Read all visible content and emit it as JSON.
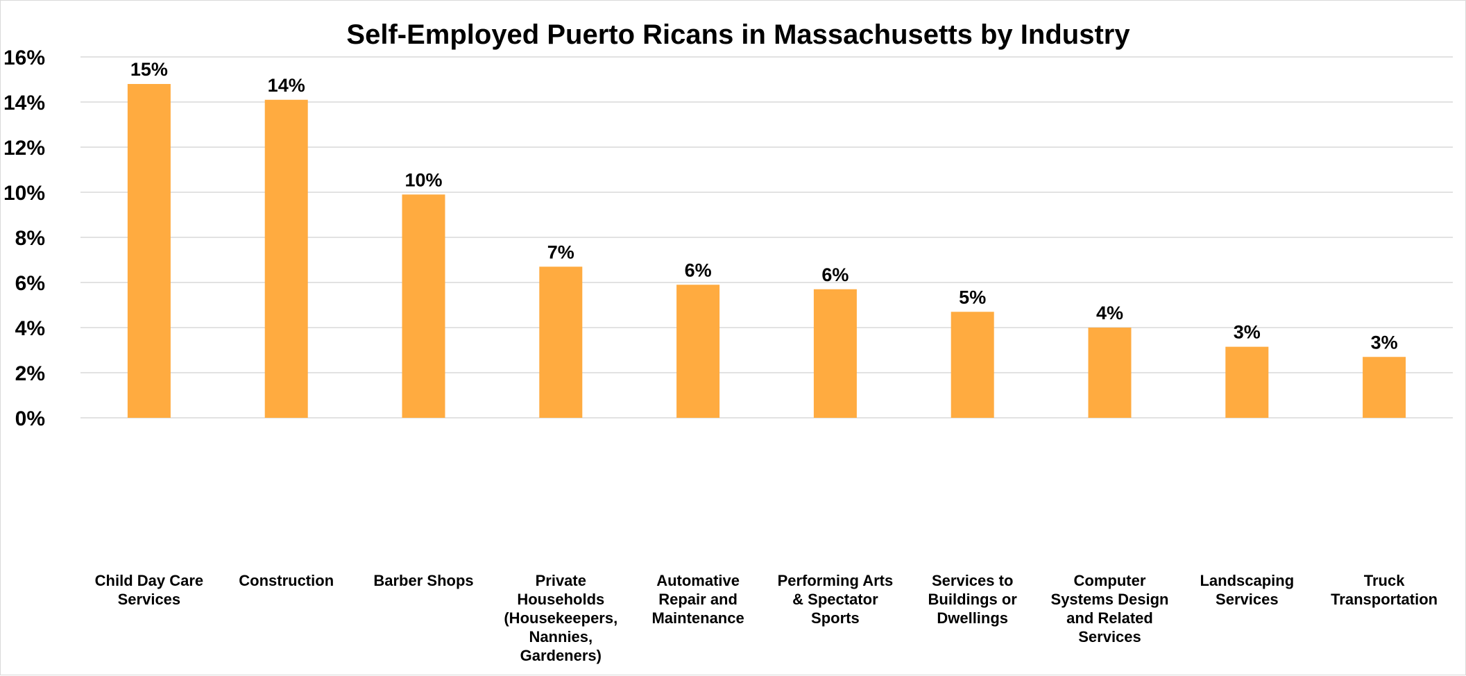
{
  "chart_data": {
    "type": "bar",
    "title": "Self-Employed Puerto Ricans in Massachusetts by Industry",
    "xlabel": "",
    "ylabel": "",
    "ylim": [
      0,
      16
    ],
    "y_ticks": [
      "0%",
      "2%",
      "4%",
      "6%",
      "8%",
      "10%",
      "12%",
      "14%",
      "16%"
    ],
    "grid": true,
    "legend": "none",
    "bar_color": "#FFAB40",
    "categories": [
      [
        "Child Day Care",
        "Services"
      ],
      [
        "Construction"
      ],
      [
        "Barber Shops"
      ],
      [
        "Private",
        "Households",
        "(Housekeepers,",
        "Nannies,",
        "Gardeners)"
      ],
      [
        "Automative",
        "Repair and",
        "Maintenance"
      ],
      [
        "Performing Arts",
        "& Spectator",
        "Sports"
      ],
      [
        "Services to",
        "Buildings or",
        "Dwellings"
      ],
      [
        "Computer",
        "Systems Design",
        "and Related",
        "Services"
      ],
      [
        "Landscaping",
        "Services"
      ],
      [
        "Truck",
        "Transportation"
      ]
    ],
    "values": [
      14.8,
      14.1,
      9.9,
      6.7,
      5.9,
      5.7,
      4.7,
      4.0,
      3.15,
      2.7
    ],
    "data_labels": [
      "15%",
      "14%",
      "10%",
      "7%",
      "6%",
      "6%",
      "5%",
      "4%",
      "3%",
      "3%"
    ]
  }
}
